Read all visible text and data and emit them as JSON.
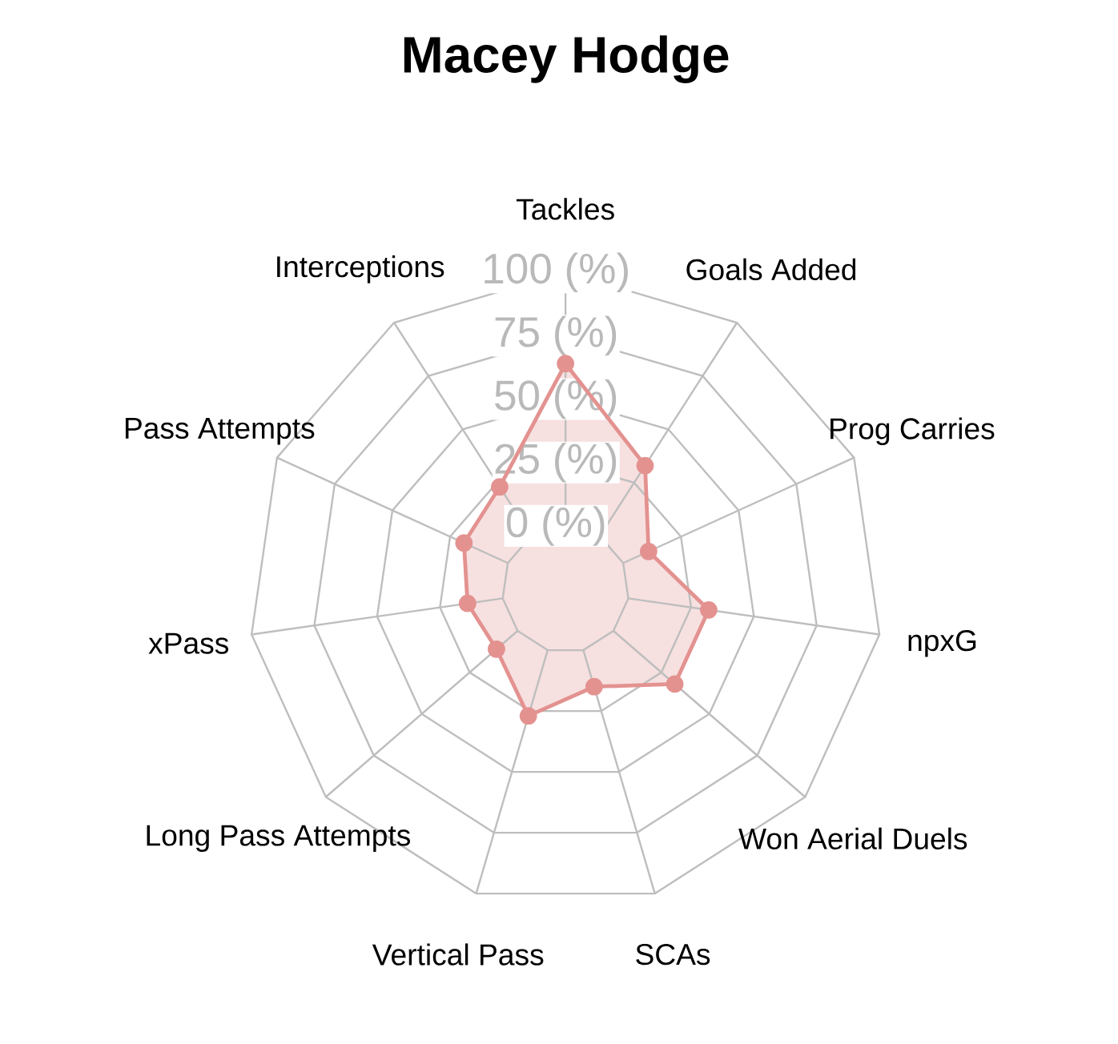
{
  "chart_data": {
    "type": "radar",
    "title": "Macey Hodge",
    "categories": [
      "Tackles",
      "Goals Added",
      "Prog Carries",
      "npxG",
      "Won Aerial Duels",
      "SCAs",
      "Vertical Pass",
      "Long Pass Attempts",
      "xPass",
      "Pass Attempts",
      "Interceptions"
    ],
    "series": [
      {
        "color": "#e39290",
        "values": [
          64,
          33,
          11,
          32,
          32,
          15,
          27,
          11,
          14,
          19,
          23
        ]
      }
    ],
    "ylim": [
      -25,
      100
    ],
    "yticks": [
      {
        "value": 0,
        "label": "0 (%)"
      },
      {
        "value": 25,
        "label": "25 (%)"
      },
      {
        "value": 50,
        "label": "50 (%)"
      },
      {
        "value": 75,
        "label": "75 (%)"
      },
      {
        "value": 100,
        "label": "100 (%)"
      }
    ],
    "grid": true,
    "marker": "circle"
  }
}
